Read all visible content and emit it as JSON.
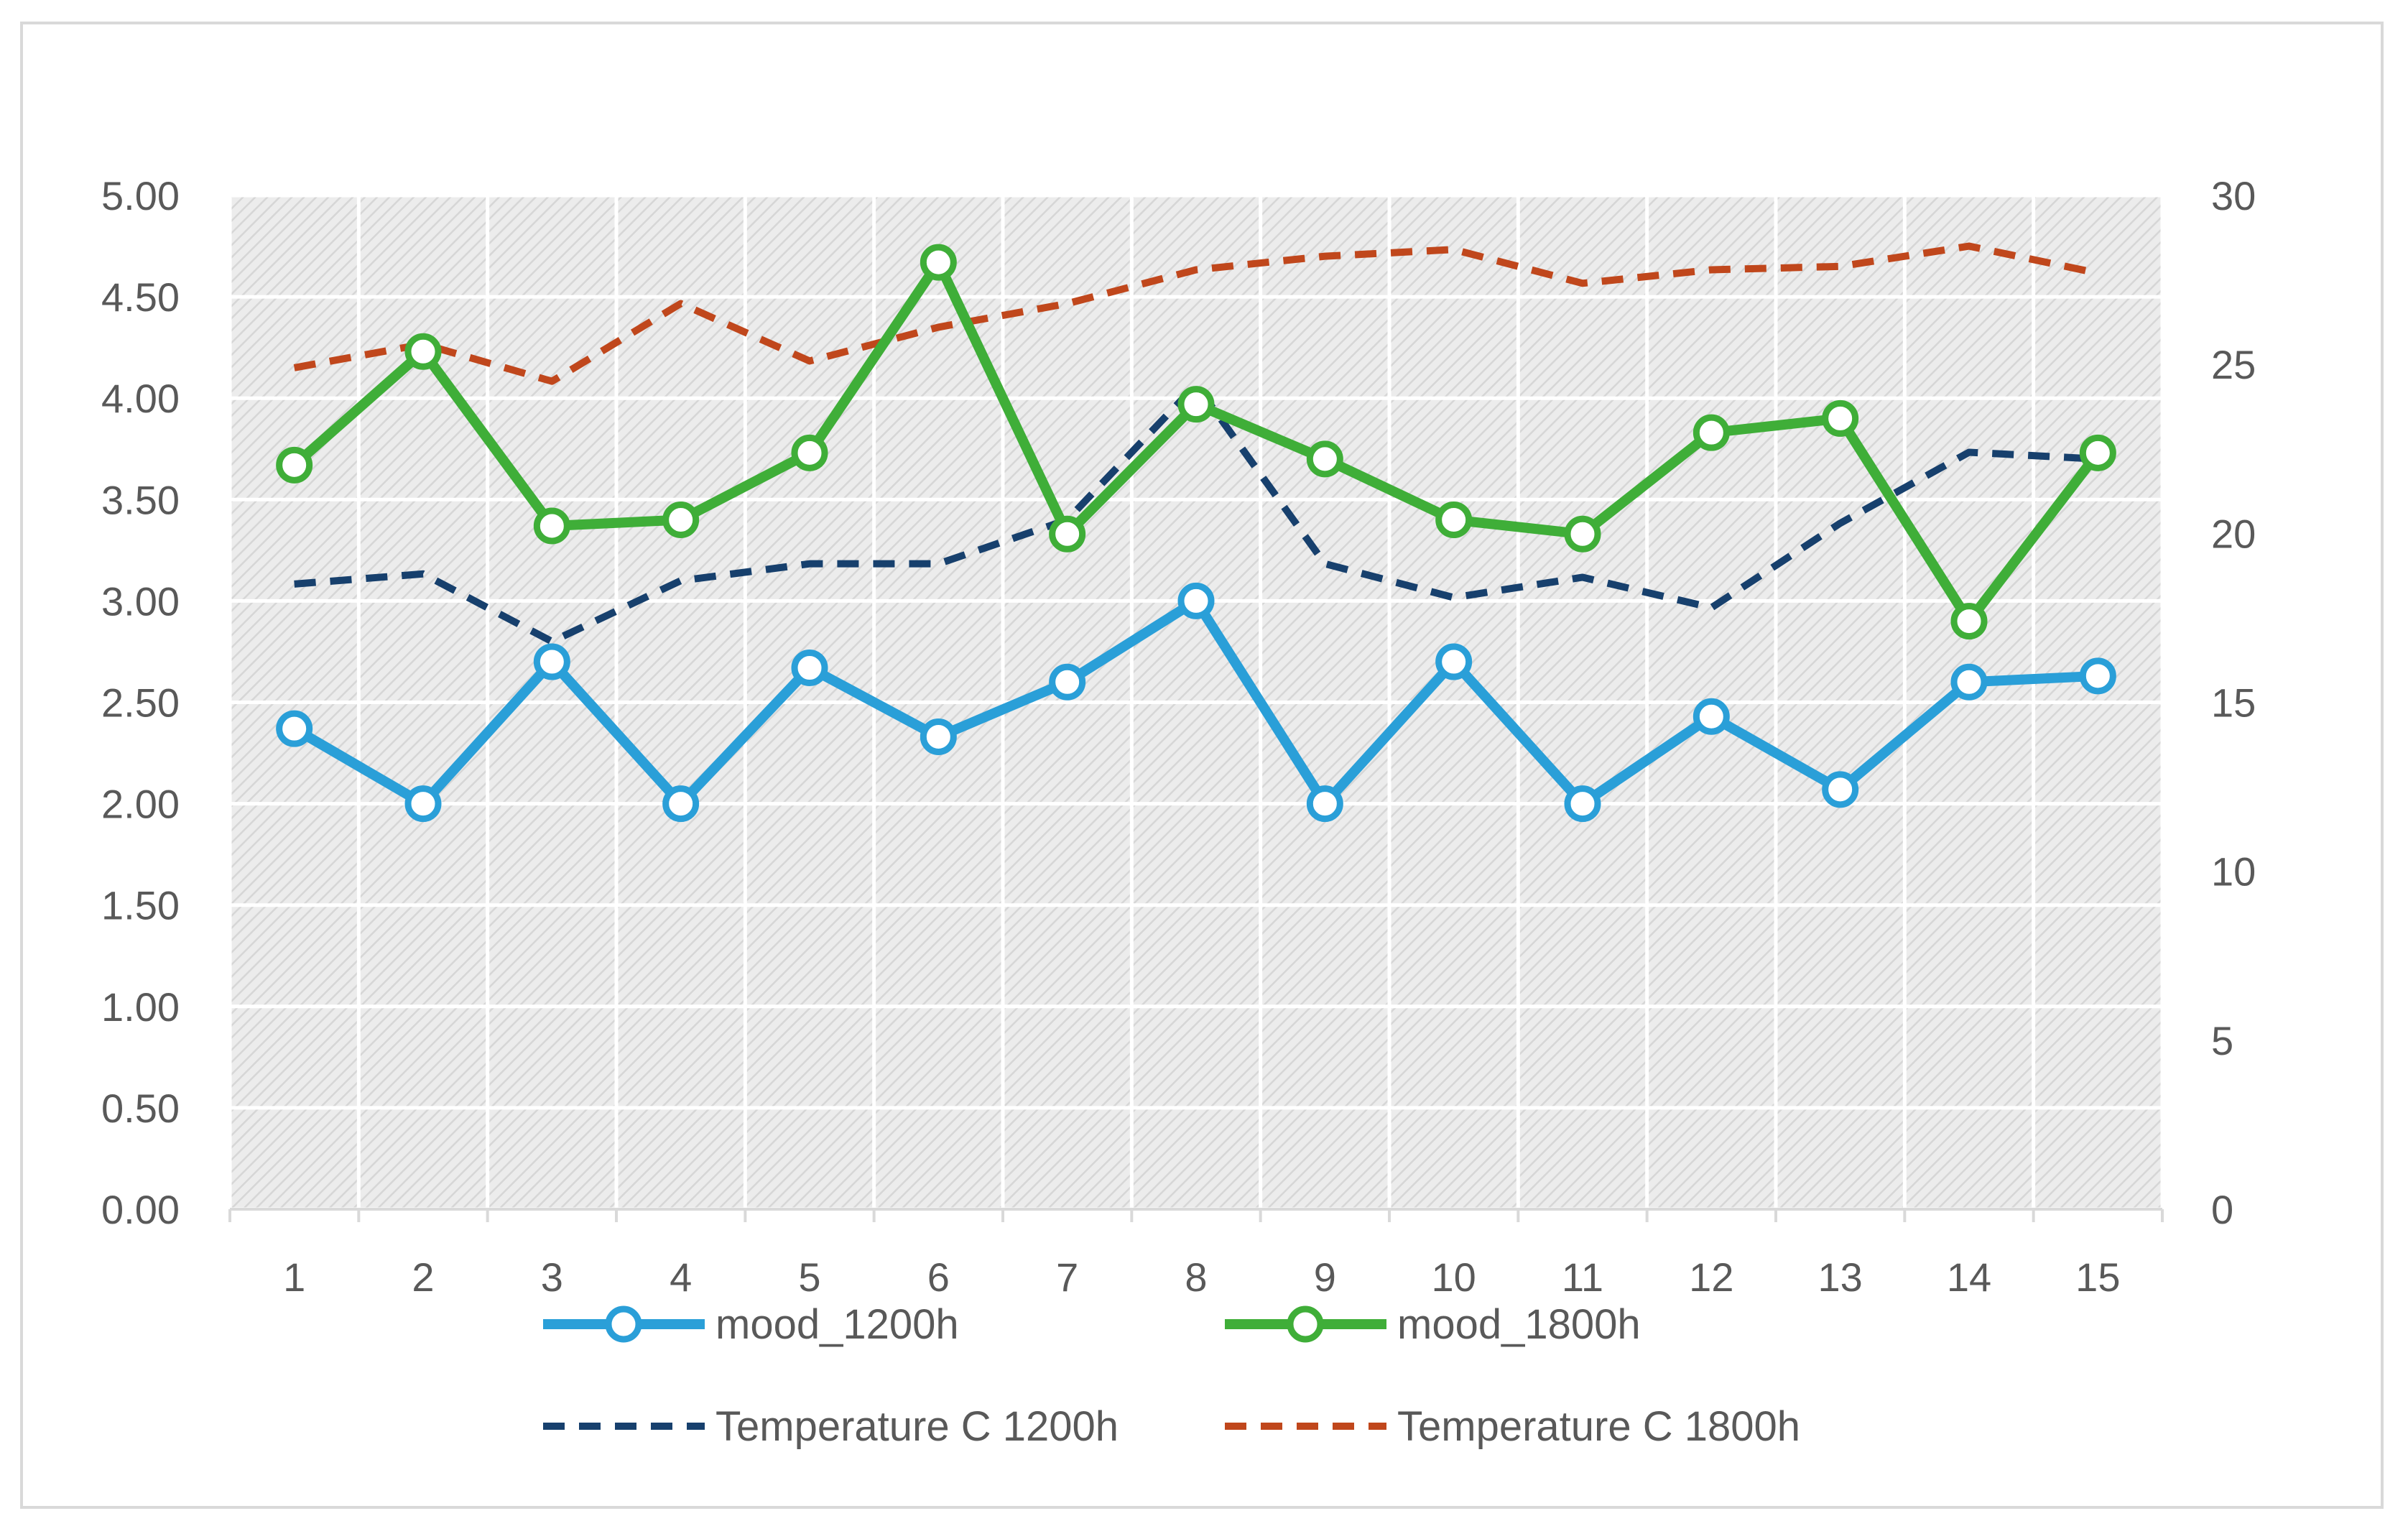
{
  "chart_data": {
    "type": "line",
    "title": "",
    "x": [
      "1",
      "2",
      "3",
      "4",
      "5",
      "6",
      "7",
      "8",
      "9",
      "10",
      "11",
      "12",
      "13",
      "14",
      "15"
    ],
    "y_left": {
      "min": 0,
      "max": 5,
      "step": 0.5,
      "ticks": [
        "0.00",
        "0.50",
        "1.00",
        "1.50",
        "2.00",
        "2.50",
        "3.00",
        "3.50",
        "4.00",
        "4.50",
        "5.00"
      ]
    },
    "y_right": {
      "min": 0,
      "max": 30,
      "step": 5,
      "ticks": [
        "0",
        "5",
        "10",
        "15",
        "20",
        "25",
        "30"
      ]
    },
    "grid": true,
    "legend_position": "bottom",
    "series": [
      {
        "name": "mood_1200h",
        "axis": "left",
        "style": "solid-marker",
        "color": "#2a9fd8",
        "values": [
          2.37,
          2.0,
          2.7,
          2.0,
          2.67,
          2.33,
          2.6,
          3.0,
          2.0,
          2.7,
          2.0,
          2.43,
          2.07,
          2.6,
          2.63
        ]
      },
      {
        "name": "mood_1800h",
        "axis": "left",
        "style": "solid-marker",
        "color": "#3fae38",
        "values": [
          3.67,
          4.23,
          3.37,
          3.4,
          3.73,
          4.67,
          3.33,
          3.97,
          3.7,
          3.4,
          3.33,
          3.83,
          3.9,
          2.9,
          3.73
        ]
      },
      {
        "name": "Temperature C 1200h",
        "axis": "right",
        "style": "dashed",
        "color": "#17406d",
        "values": [
          18.5,
          18.8,
          16.8,
          18.6,
          19.1,
          19.1,
          20.4,
          24.4,
          19.1,
          18.1,
          18.7,
          17.8,
          20.3,
          22.4,
          22.2
        ]
      },
      {
        "name": "Temperature  C 1800h",
        "axis": "right",
        "style": "dashed",
        "color": "#c0471c",
        "values": [
          24.9,
          25.6,
          24.5,
          26.8,
          25.1,
          26.1,
          26.8,
          27.8,
          28.2,
          28.4,
          27.4,
          27.8,
          27.9,
          28.5,
          27.7
        ]
      }
    ]
  }
}
